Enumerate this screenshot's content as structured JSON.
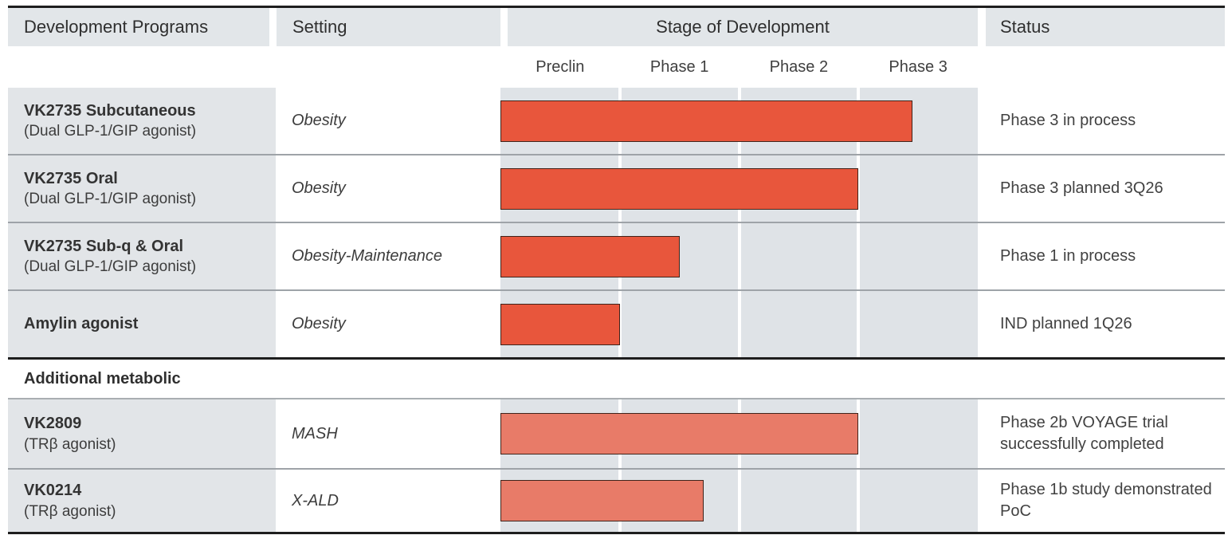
{
  "colors": {
    "bar_dark": "#E8563C",
    "bar_light": "#E87B68",
    "bar_border": "#40231A",
    "header_bg": "#E2E6E9",
    "stage_bg": "#DFE3E7",
    "separator": "#9EA3A8",
    "strong_line": "#1E1E1E"
  },
  "header": {
    "programs": "Development Programs",
    "setting": "Setting",
    "stage": "Stage of Development",
    "status": "Status"
  },
  "phases": [
    "Preclin",
    "Phase 1",
    "Phase 2",
    "Phase 3"
  ],
  "section": {
    "label": "Additional metabolic"
  },
  "rows": [
    {
      "name": "VK2735 Subcutaneous",
      "subtitle": "(Dual GLP-1/GIP agonist)",
      "setting": "Obesity",
      "stage_end": 3.45,
      "bar_tone": "dark",
      "status": "Phase 3 in process"
    },
    {
      "name": "VK2735 Oral",
      "subtitle": "(Dual GLP-1/GIP agonist)",
      "setting": "Obesity",
      "stage_end": 3.0,
      "bar_tone": "dark",
      "status": "Phase 3 planned 3Q26"
    },
    {
      "name": "VK2735 Sub-q & Oral",
      "subtitle": "(Dual GLP-1/GIP agonist)",
      "setting": "Obesity-Maintenance",
      "stage_end": 1.5,
      "bar_tone": "dark",
      "status": "Phase 1 in process"
    },
    {
      "name": "Amylin agonist",
      "subtitle": "",
      "setting": "Obesity",
      "stage_end": 1.0,
      "bar_tone": "dark",
      "status": "IND planned 1Q26"
    },
    {
      "name": "VK2809",
      "subtitle": "(TRβ agonist)",
      "setting": "MASH",
      "stage_end": 3.0,
      "bar_tone": "light",
      "status": "Phase 2b VOYAGE trial successfully completed"
    },
    {
      "name": "VK0214",
      "subtitle": "(TRβ agonist)",
      "setting": "X-ALD",
      "stage_end": 1.7,
      "bar_tone": "light",
      "status": "Phase 1b study demonstrated PoC"
    }
  ],
  "chart_data": {
    "type": "bar",
    "orientation": "horizontal",
    "title": "Stage of Development",
    "categories": [
      "VK2735 Subcutaneous",
      "VK2735 Oral",
      "VK2735 Sub-q & Oral",
      "Amylin agonist",
      "VK2809",
      "VK0214"
    ],
    "values": [
      3.45,
      3.0,
      1.5,
      1.0,
      3.0,
      1.7
    ],
    "x_ticks": [
      "Preclin",
      "Phase 1",
      "Phase 2",
      "Phase 3"
    ],
    "xlim": [
      0,
      4
    ],
    "units": "development phases completed (1 = Preclin, 4 = Phase 3)",
    "grid": true,
    "legend_position": "none"
  }
}
